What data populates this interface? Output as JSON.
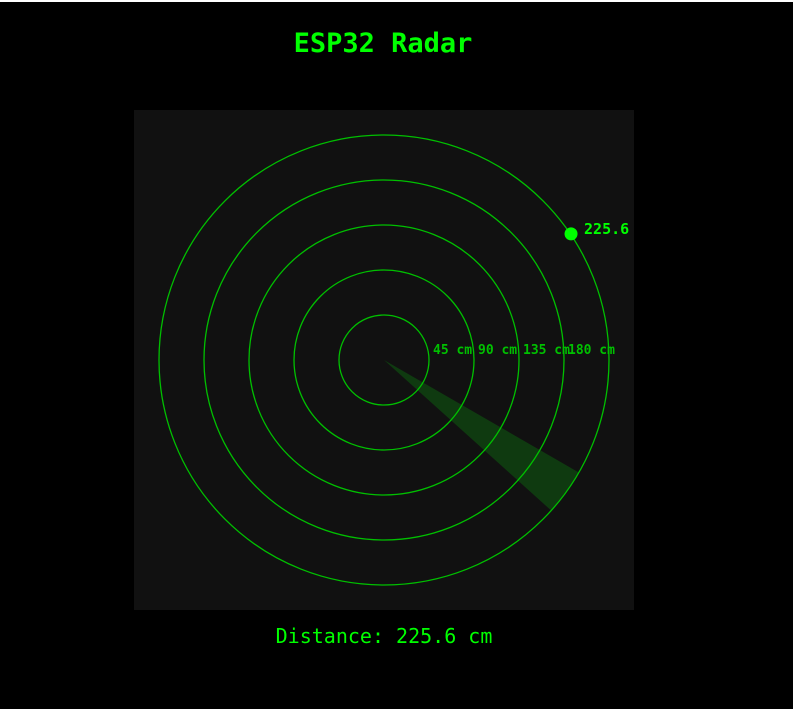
{
  "header": {
    "title": "ESP32 Radar"
  },
  "radar": {
    "max_range_cm": 225,
    "rings": [
      {
        "distance_cm": 45,
        "label": "45 cm"
      },
      {
        "distance_cm": 90,
        "label": "90 cm"
      },
      {
        "distance_cm": 135,
        "label": "135 cm"
      },
      {
        "distance_cm": 180,
        "label": "180 cm"
      }
    ],
    "sweep": {
      "from_angle_deg": 318,
      "to_angle_deg": 330
    },
    "target": {
      "angle_deg": 34,
      "distance_cm": 225.6,
      "label": "225.6 cm"
    },
    "colors": {
      "ring": "#00c000",
      "sweep": "#0f3a10",
      "target": "#00ff00",
      "background": "#111111"
    }
  },
  "readout": {
    "text": "Distance: 225.6 cm"
  }
}
